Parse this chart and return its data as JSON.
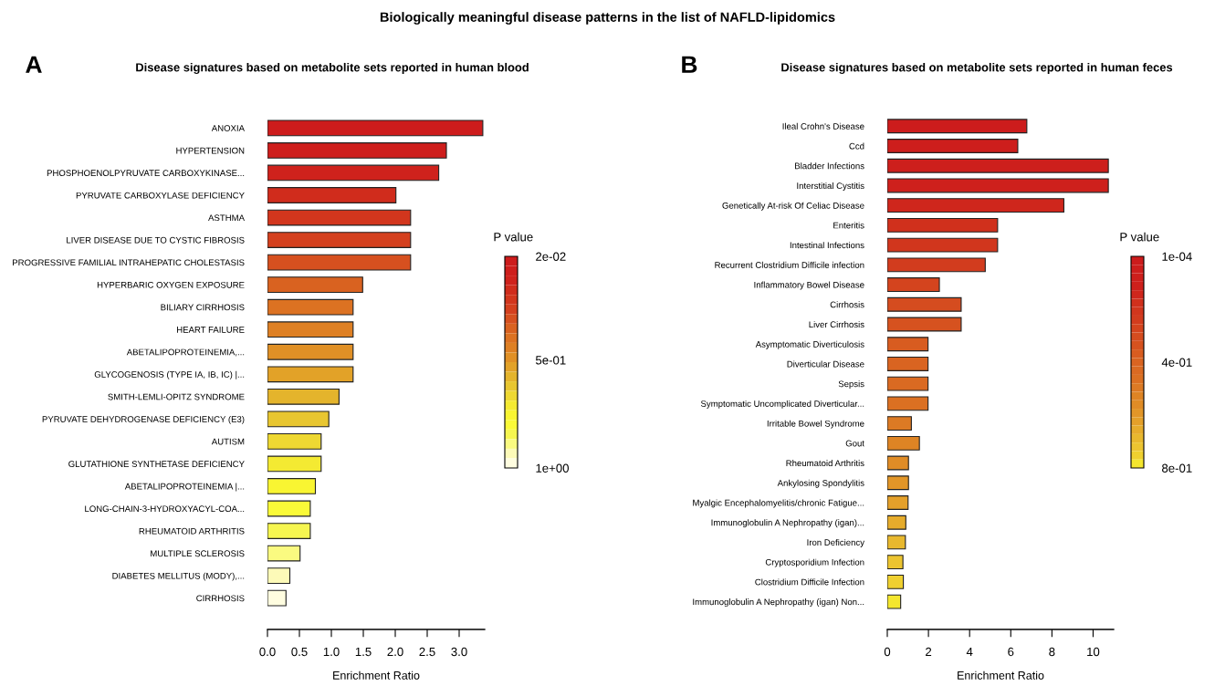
{
  "chart_data": [
    {
      "type": "bar",
      "orientation": "horizontal",
      "title": "Disease signatures based on metabolite sets reported in human blood",
      "xlabel": "Enrichment Ratio",
      "clabel": "P value",
      "annotations": [
        "A",
        "Biologically meaningful disease patterns in the list of NAFLD-lipidomics"
      ],
      "categories": [
        "ANOXIA",
        "HYPERTENSION",
        "PHOSPHOENOLPYRUVATE CARBOXYKINASE...",
        "PYRUVATE CARBOXYLASE DEFICIENCY",
        "ASTHMA",
        "LIVER DISEASE DUE TO CYSTIC FIBROSIS",
        "PROGRESSIVE FAMILIAL INTRAHEPATIC CHOLESTASIS",
        "HYPERBARIC OXYGEN EXPOSURE",
        "BILIARY CIRRHOSIS",
        "HEART FAILURE",
        "ABETALIPOPROTEINEMIA,...",
        "GLYCOGENOSIS (TYPE IA, IB, IC) |...",
        "SMITH-LEMLI-OPITZ SYNDROME",
        "PYRUVATE DEHYDROGENASE DEFICIENCY (E3)",
        "AUTISM",
        "GLUTATHIONE SYNTHETASE DEFICIENCY",
        "ABETALIPOPROTEINEMIA |...",
        "LONG-CHAIN-3-HYDROXYACYL-COA...",
        "RHEUMATOID ARTHRITIS",
        "MULTIPLE SCLEROSIS",
        "DIABETES MELLITUS (MODY),...",
        "CIRRHOSIS"
      ],
      "values": [
        3.37,
        2.8,
        2.68,
        2.01,
        2.24,
        2.24,
        2.24,
        1.49,
        1.34,
        1.34,
        1.34,
        1.34,
        1.12,
        0.96,
        0.84,
        0.84,
        0.75,
        0.67,
        0.67,
        0.51,
        0.35,
        0.29
      ],
      "colors": [
        "#cd1c1c",
        "#ce1e1c",
        "#cf221c",
        "#d02c1c",
        "#d2361d",
        "#d4401e",
        "#d6501f",
        "#d96220",
        "#dc7222",
        "#de8024",
        "#e09026",
        "#e2a228",
        "#e4b42c",
        "#e8c630",
        "#eed832",
        "#f4ea32",
        "#f9f532",
        "#fafa38",
        "#f6f650",
        "#fafa80",
        "#fdfab8",
        "#fffde0"
      ],
      "xlim": [
        0,
        3.4
      ],
      "xticks": [
        {
          "value": 0,
          "label": "0.0"
        },
        0.5,
        {
          "value": 1,
          "label": "1.0"
        },
        1.5,
        {
          "value": 2,
          "label": "2.0"
        },
        2.5,
        {
          "value": 3,
          "label": "3.0"
        }
      ],
      "clim": [
        1,
        0.02
      ],
      "cticks": [
        {
          "value": 0.02,
          "label": "2e-02"
        },
        {
          "value": 0.5,
          "label": "5e-01"
        },
        {
          "value": 1,
          "label": "1e+00"
        }
      ],
      "grid": false,
      "legend": false
    },
    {
      "type": "bar",
      "orientation": "horizontal",
      "title": "Disease signatures based on metabolite sets reported in human feces",
      "xlabel": "Enrichment Ratio",
      "clabel": "P value",
      "annotations": [
        "B"
      ],
      "categories": [
        "Ileal Crohn's Disease",
        "Ccd",
        "Bladder Infections",
        "Interstitial Cystitis",
        "Genetically At-risk Of Celiac Disease",
        "Enteritis",
        "Intestinal Infections",
        "Recurrent Clostridium Difficile infection",
        "Inflammatory Bowel Disease",
        "Cirrhosis",
        "Liver Cirrhosis",
        "Asymptomatic Diverticulosis",
        "Diverticular Disease",
        "Sepsis",
        "Symptomatic Uncomplicated Diverticular...",
        "Irritable Bowel Syndrome",
        "Gout",
        "Rheumatoid Arthritis",
        "Ankylosing Spondylitis",
        "Myalgic Encephalomyelitis/chronic Fatigue...",
        "Immunoglobulin A Nephropathy (igan)...",
        "Iron Deficiency",
        "Cryptosporidium Infection",
        "Clostridium Difficile Infection",
        "Immunoglobulin A Nephropathy (igan) Non..."
      ],
      "values": [
        6.78,
        6.34,
        10.74,
        10.74,
        8.58,
        5.36,
        5.36,
        4.76,
        2.53,
        3.59,
        3.59,
        1.98,
        1.98,
        1.98,
        1.98,
        1.17,
        1.56,
        1.03,
        1.03,
        1.01,
        0.9,
        0.88,
        0.76,
        0.78,
        0.65
      ],
      "colors": [
        "#cc1c1c",
        "#cd1e1c",
        "#cd1f1c",
        "#ce201c",
        "#cf261c",
        "#d0301c",
        "#d1361d",
        "#d23c1e",
        "#d4441e",
        "#d54c1f",
        "#d6521f",
        "#d85c20",
        "#d96421",
        "#da6a22",
        "#db7022",
        "#dc7a24",
        "#de8424",
        "#e08c26",
        "#e29628",
        "#e4a02a",
        "#e6ac2c",
        "#e8b82e",
        "#ecc430",
        "#efd030",
        "#f4e62e"
      ],
      "xlim": [
        0,
        11
      ],
      "xticks": [
        0,
        2,
        4,
        6,
        8,
        10
      ],
      "clim": [
        0.8,
        0.0001
      ],
      "cticks": [
        {
          "value": 0.0001,
          "label": "1e-04"
        },
        {
          "value": 0.4,
          "label": "4e-01"
        },
        {
          "value": 0.8,
          "label": "8e-01"
        }
      ],
      "grid": false,
      "legend": false
    }
  ]
}
